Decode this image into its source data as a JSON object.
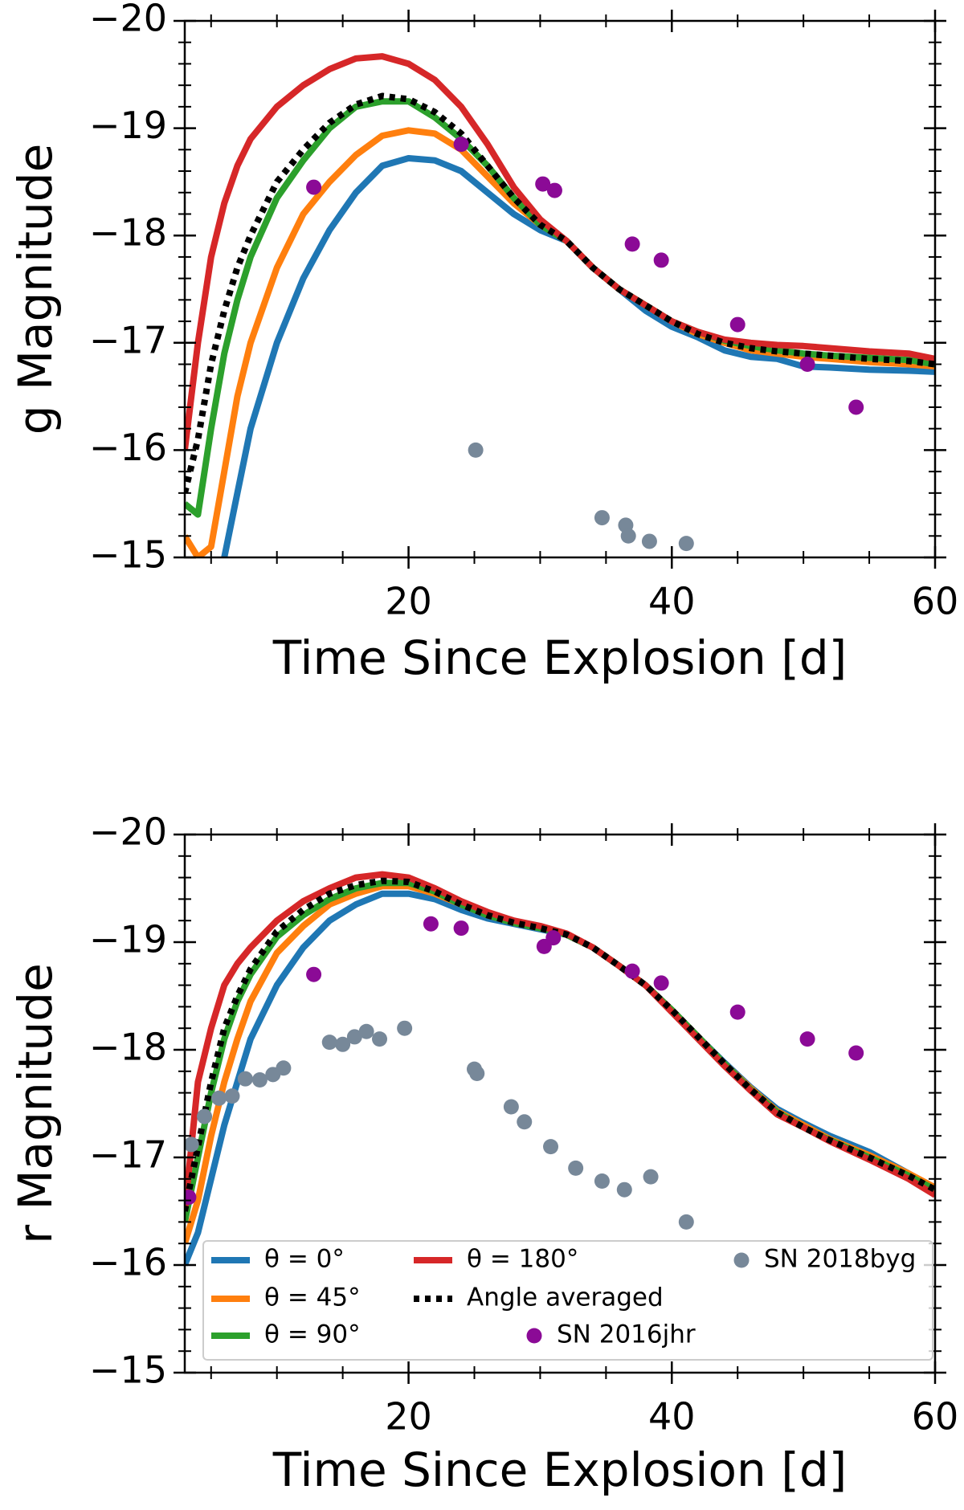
{
  "chart_data": [
    {
      "type": "line",
      "xlabel": "Time Since Explosion [d]",
      "ylabel": "g Magnitude",
      "xlim": [
        3,
        60
      ],
      "ylim": [
        -15,
        -20
      ],
      "xticks": [
        20,
        40,
        60
      ],
      "xticks_minor": [
        5,
        10,
        15,
        25,
        30,
        35,
        45,
        50,
        55
      ],
      "yticks": [
        {
          "value": -20,
          "label": "−20"
        },
        {
          "value": -19,
          "label": "−19"
        },
        {
          "value": -18,
          "label": "−18"
        },
        {
          "value": -17,
          "label": "−17"
        },
        {
          "value": -16,
          "label": "−16"
        },
        {
          "value": -15,
          "label": "−15"
        }
      ],
      "yticks_minor": [
        -19.8,
        -19.6,
        -19.4,
        -19.2,
        -18.8,
        -18.6,
        -18.4,
        -18.2,
        -17.8,
        -17.6,
        -17.4,
        -17.2,
        -16.8,
        -16.6,
        -16.4,
        -16.2,
        -15.8,
        -15.6,
        -15.4,
        -15.2
      ],
      "x": [
        3,
        4,
        5,
        6,
        7,
        8,
        10,
        12,
        14,
        16,
        18,
        20,
        22,
        24,
        26,
        28,
        30,
        32,
        34,
        36,
        38,
        40,
        42,
        44,
        46,
        48,
        50,
        52,
        55,
        58,
        60
      ],
      "series": [
        {
          "color": "#1f77b4",
          "style": "solid",
          "values": [
            null,
            null,
            null,
            -15.0,
            -15.6,
            -16.2,
            -17.0,
            -17.6,
            -18.05,
            -18.4,
            -18.65,
            -18.72,
            -18.7,
            -18.6,
            -18.4,
            -18.2,
            -18.05,
            -17.95,
            -17.7,
            -17.5,
            -17.3,
            -17.15,
            -17.05,
            -16.93,
            -16.87,
            -16.85,
            -16.78,
            -16.77,
            -16.75,
            -16.74,
            -16.73
          ]
        },
        {
          "color": "#ff7f0e",
          "style": "solid",
          "values": [
            -15.2,
            -15.0,
            -15.1,
            -15.8,
            -16.5,
            -17.0,
            -17.7,
            -18.2,
            -18.5,
            -18.75,
            -18.93,
            -18.98,
            -18.95,
            -18.8,
            -18.55,
            -18.3,
            -18.1,
            -17.95,
            -17.7,
            -17.5,
            -17.35,
            -17.2,
            -17.08,
            -17.0,
            -16.93,
            -16.9,
            -16.87,
            -16.85,
            -16.82,
            -16.8,
            -16.78
          ]
        },
        {
          "color": "#2ca02c",
          "style": "solid",
          "values": [
            -15.5,
            -15.4,
            -16.2,
            -16.9,
            -17.4,
            -17.8,
            -18.35,
            -18.7,
            -19.0,
            -19.2,
            -19.25,
            -19.25,
            -19.1,
            -18.9,
            -18.65,
            -18.35,
            -18.1,
            -17.95,
            -17.7,
            -17.5,
            -17.35,
            -17.2,
            -17.1,
            -17.02,
            -16.97,
            -16.93,
            -16.9,
            -16.88,
            -16.86,
            -16.84,
            -16.8
          ]
        },
        {
          "color": "#d62728",
          "style": "solid",
          "values": [
            -16.0,
            -17.0,
            -17.8,
            -18.3,
            -18.65,
            -18.9,
            -19.2,
            -19.4,
            -19.55,
            -19.65,
            -19.67,
            -19.6,
            -19.45,
            -19.2,
            -18.85,
            -18.45,
            -18.15,
            -17.95,
            -17.7,
            -17.5,
            -17.35,
            -17.2,
            -17.1,
            -17.03,
            -17.0,
            -16.98,
            -16.97,
            -16.95,
            -16.92,
            -16.9,
            -16.85
          ]
        },
        {
          "color": "#000000",
          "style": "dotted",
          "values": [
            -15.6,
            -16.1,
            -16.8,
            -17.3,
            -17.7,
            -18.0,
            -18.5,
            -18.8,
            -19.05,
            -19.22,
            -19.3,
            -19.27,
            -19.15,
            -18.95,
            -18.65,
            -18.35,
            -18.1,
            -17.95,
            -17.7,
            -17.5,
            -17.35,
            -17.2,
            -17.08,
            -17.0,
            -16.95,
            -16.92,
            -16.9,
            -16.88,
            -16.85,
            -16.83,
            -16.8
          ]
        },
        {
          "color": "#8b0a96",
          "style": "scatter",
          "x": [
            12.8,
            24,
            30.2,
            31.1,
            37,
            39.2,
            45,
            50.3,
            54
          ],
          "values": [
            -18.45,
            -18.85,
            -18.48,
            -18.42,
            -17.92,
            -17.77,
            -17.17,
            -16.8,
            -16.4
          ]
        },
        {
          "color": "#778899",
          "style": "scatter",
          "x": [
            25.1,
            34.7,
            36.5,
            36.7,
            38.3,
            41.1
          ],
          "values": [
            -16.0,
            -15.37,
            -15.3,
            -15.2,
            -15.15,
            -15.13
          ]
        }
      ]
    },
    {
      "type": "line",
      "xlabel": "Time Since Explosion [d]",
      "ylabel": "r Magnitude",
      "legend": "lower center",
      "xlim": [
        3,
        60
      ],
      "ylim": [
        -15,
        -20
      ],
      "xticks": [
        20,
        40,
        60
      ],
      "xticks_minor": [
        5,
        10,
        15,
        25,
        30,
        35,
        45,
        50,
        55
      ],
      "yticks": [
        {
          "value": -20,
          "label": "−20"
        },
        {
          "value": -19,
          "label": "−19"
        },
        {
          "value": -18,
          "label": "−18"
        },
        {
          "value": -17,
          "label": "−17"
        },
        {
          "value": -16,
          "label": "−16"
        },
        {
          "value": -15,
          "label": "−15"
        }
      ],
      "yticks_minor": [
        -19.8,
        -19.6,
        -19.4,
        -19.2,
        -18.8,
        -18.6,
        -18.4,
        -18.2,
        -17.8,
        -17.6,
        -17.4,
        -17.2,
        -16.8,
        -16.6,
        -16.4,
        -16.2,
        -15.8,
        -15.6,
        -15.4,
        -15.2
      ],
      "x": [
        3,
        4,
        5,
        6,
        7,
        8,
        10,
        12,
        14,
        16,
        18,
        20,
        22,
        24,
        26,
        28,
        30,
        32,
        34,
        36,
        38,
        40,
        42,
        44,
        46,
        48,
        50,
        52,
        55,
        58,
        60
      ],
      "series": [
        {
          "name": "θ = 0°",
          "color": "#1f77b4",
          "style": "solid",
          "values": [
            -16.0,
            -16.3,
            -16.8,
            -17.3,
            -17.7,
            -18.1,
            -18.6,
            -18.95,
            -19.2,
            -19.35,
            -19.45,
            -19.45,
            -19.4,
            -19.3,
            -19.22,
            -19.17,
            -19.12,
            -19.07,
            -18.95,
            -18.78,
            -18.6,
            -18.37,
            -18.12,
            -17.88,
            -17.65,
            -17.45,
            -17.32,
            -17.2,
            -17.05,
            -16.85,
            -16.7
          ]
        },
        {
          "name": "θ = 45°",
          "color": "#ff7f0e",
          "style": "solid",
          "values": [
            -16.2,
            -16.6,
            -17.2,
            -17.7,
            -18.1,
            -18.45,
            -18.9,
            -19.15,
            -19.35,
            -19.45,
            -19.52,
            -19.52,
            -19.45,
            -19.35,
            -19.25,
            -19.18,
            -19.13,
            -19.07,
            -18.95,
            -18.78,
            -18.6,
            -18.37,
            -18.12,
            -17.87,
            -17.64,
            -17.43,
            -17.3,
            -17.17,
            -17.02,
            -16.85,
            -16.72
          ]
        },
        {
          "name": "θ = 90°",
          "color": "#2ca02c",
          "style": "solid",
          "values": [
            -16.4,
            -17.0,
            -17.6,
            -18.1,
            -18.45,
            -18.7,
            -19.05,
            -19.25,
            -19.4,
            -19.5,
            -19.55,
            -19.55,
            -19.47,
            -19.35,
            -19.25,
            -19.18,
            -19.13,
            -19.07,
            -18.95,
            -18.78,
            -18.6,
            -18.37,
            -18.12,
            -17.87,
            -17.63,
            -17.42,
            -17.28,
            -17.16,
            -17.0,
            -16.83,
            -16.7
          ]
        },
        {
          "name": "θ = 180°",
          "color": "#d62728",
          "style": "solid",
          "values": [
            -16.5,
            -17.7,
            -18.2,
            -18.6,
            -18.8,
            -18.95,
            -19.2,
            -19.38,
            -19.5,
            -19.6,
            -19.63,
            -19.6,
            -19.5,
            -19.38,
            -19.28,
            -19.2,
            -19.15,
            -19.08,
            -18.95,
            -18.78,
            -18.6,
            -18.35,
            -18.1,
            -17.85,
            -17.62,
            -17.4,
            -17.28,
            -17.15,
            -16.98,
            -16.8,
            -16.65
          ]
        },
        {
          "name": "Angle averaged",
          "color": "#000000",
          "style": "dotted",
          "values": [
            -16.5,
            -17.1,
            -17.7,
            -18.2,
            -18.5,
            -18.75,
            -19.1,
            -19.3,
            -19.45,
            -19.53,
            -19.57,
            -19.56,
            -19.47,
            -19.35,
            -19.25,
            -19.18,
            -19.13,
            -19.07,
            -18.95,
            -18.78,
            -18.6,
            -18.37,
            -18.12,
            -17.87,
            -17.63,
            -17.42,
            -17.28,
            -17.16,
            -17.0,
            -16.83,
            -16.7
          ]
        },
        {
          "name": "SN 2016jhr",
          "color": "#8b0a96",
          "style": "scatter",
          "x": [
            3.3,
            12.8,
            21.7,
            24,
            30.3,
            31,
            37,
            39.2,
            45,
            50.3,
            54
          ],
          "values": [
            -16.63,
            -18.7,
            -19.17,
            -19.13,
            -18.96,
            -19.04,
            -18.73,
            -18.62,
            -18.35,
            -18.1,
            -17.97
          ]
        },
        {
          "name": "SN 2018byg",
          "color": "#778899",
          "style": "scatter",
          "x": [
            3.5,
            4.5,
            5.6,
            6.6,
            7.6,
            8.7,
            9.7,
            10.5,
            14,
            15,
            15.9,
            16.8,
            17.8,
            19.7,
            25,
            25.2,
            27.8,
            28.8,
            30.8,
            32.7,
            34.7,
            36.4,
            38.4,
            41.1
          ],
          "values": [
            -17.12,
            -17.38,
            -17.55,
            -17.57,
            -17.73,
            -17.72,
            -17.77,
            -17.83,
            -18.07,
            -18.05,
            -18.12,
            -18.17,
            -18.1,
            -18.2,
            -17.82,
            -17.78,
            -17.47,
            -17.33,
            -17.1,
            -16.9,
            -16.78,
            -16.7,
            -16.82,
            -16.4
          ]
        }
      ]
    }
  ]
}
